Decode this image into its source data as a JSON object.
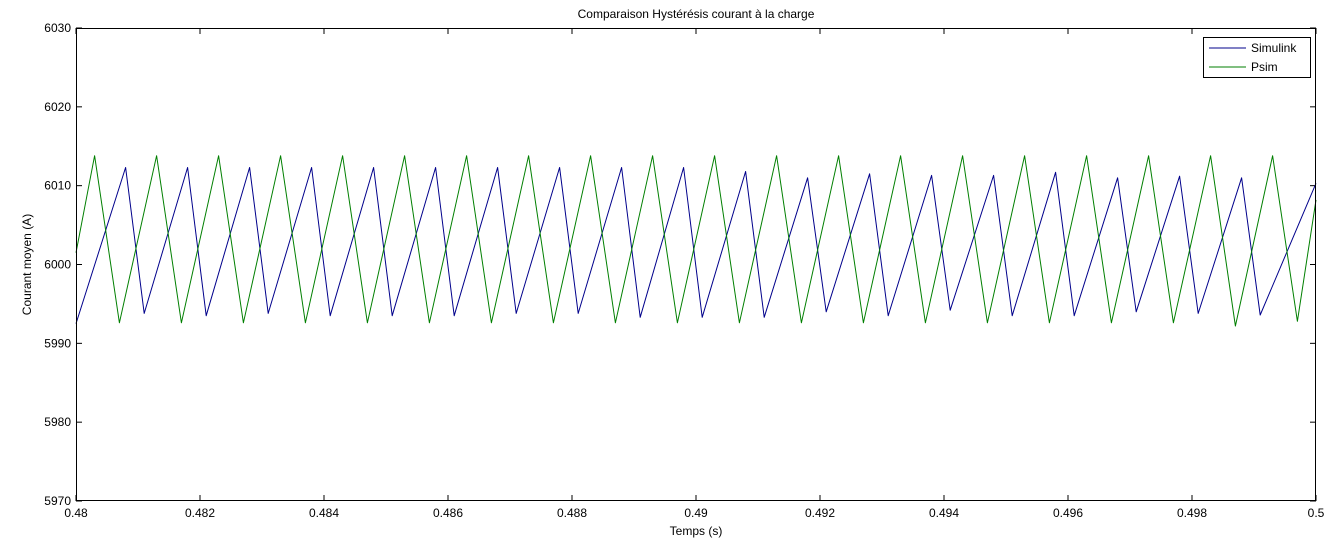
{
  "chart_data": {
    "type": "line",
    "title": "Comparaison Hystérésis courant à la charge",
    "xlabel": "Temps (s)",
    "ylabel": "Courant moyen (A)",
    "xlim": [
      0.48,
      0.5
    ],
    "ylim": [
      5970,
      6030
    ],
    "x_ticks": [
      0.48,
      0.482,
      0.484,
      0.486,
      0.488,
      0.49,
      0.492,
      0.494,
      0.496,
      0.498,
      0.5
    ],
    "x_tick_labels": [
      "0.48",
      "0.482",
      "0.484",
      "0.486",
      "0.488",
      "0.49",
      "0.492",
      "0.494",
      "0.496",
      "0.498",
      "0.5"
    ],
    "y_ticks": [
      5970,
      5980,
      5990,
      6000,
      6010,
      6020,
      6030
    ],
    "y_tick_labels": [
      "5970",
      "5980",
      "5990",
      "6000",
      "6010",
      "6020",
      "6030"
    ],
    "grid": false,
    "legend_position": "top-right",
    "series": [
      {
        "name": "Simulink",
        "color": "#00008b",
        "x": [
          0.48,
          0.4808,
          0.4811,
          0.4818,
          0.4821,
          0.4828,
          0.4831,
          0.4838,
          0.4841,
          0.4848,
          0.4851,
          0.4858,
          0.4861,
          0.4868,
          0.4871,
          0.4878,
          0.4881,
          0.4888,
          0.4891,
          0.4898,
          0.4901,
          0.4908,
          0.4911,
          0.4918,
          0.4921,
          0.4928,
          0.4931,
          0.4938,
          0.4941,
          0.4948,
          0.4951,
          0.4958,
          0.4961,
          0.4968,
          0.4971,
          0.4978,
          0.4981,
          0.4988,
          0.4991,
          0.5
        ],
        "y": [
          5992.5,
          6012.3,
          5993.8,
          6012.3,
          5993.5,
          6012.3,
          5993.8,
          6012.3,
          5993.5,
          6012.3,
          5993.5,
          6012.3,
          5993.5,
          6012.3,
          5993.8,
          6012.3,
          5993.8,
          6012.3,
          5993.3,
          6012.3,
          5993.3,
          6011.8,
          5993.3,
          6011.0,
          5994.0,
          6011.5,
          5993.5,
          6011.3,
          5994.2,
          6011.3,
          5993.5,
          6011.7,
          5993.5,
          6011.0,
          5994.0,
          6011.2,
          5993.8,
          6011.0,
          5993.6,
          6010.3
        ]
      },
      {
        "name": "Psim",
        "color": "#007f00",
        "x": [
          0.48,
          0.4803,
          0.4807,
          0.4813,
          0.4817,
          0.4823,
          0.4827,
          0.4833,
          0.4837,
          0.4843,
          0.4847,
          0.4853,
          0.4857,
          0.4863,
          0.4867,
          0.4873,
          0.4877,
          0.4883,
          0.4887,
          0.4893,
          0.4897,
          0.4903,
          0.4907,
          0.4913,
          0.4917,
          0.4923,
          0.4927,
          0.4933,
          0.4937,
          0.4943,
          0.4947,
          0.4953,
          0.4957,
          0.4963,
          0.4967,
          0.4973,
          0.4977,
          0.4983,
          0.4987,
          0.4993,
          0.4997,
          0.5
        ],
        "y": [
          6001.5,
          6013.8,
          5992.6,
          6013.8,
          5992.6,
          6013.8,
          5992.6,
          6013.8,
          5992.6,
          6013.8,
          5992.6,
          6013.8,
          5992.6,
          6013.8,
          5992.6,
          6013.8,
          5992.6,
          6013.8,
          5992.6,
          6013.8,
          5992.6,
          6013.8,
          5992.6,
          6013.8,
          5992.6,
          6013.8,
          5992.6,
          6013.8,
          5992.6,
          6013.8,
          5992.6,
          6013.8,
          5992.6,
          6013.8,
          5992.6,
          6013.8,
          5992.6,
          6013.8,
          5992.2,
          6013.8,
          5992.8,
          6008.2
        ]
      }
    ]
  }
}
